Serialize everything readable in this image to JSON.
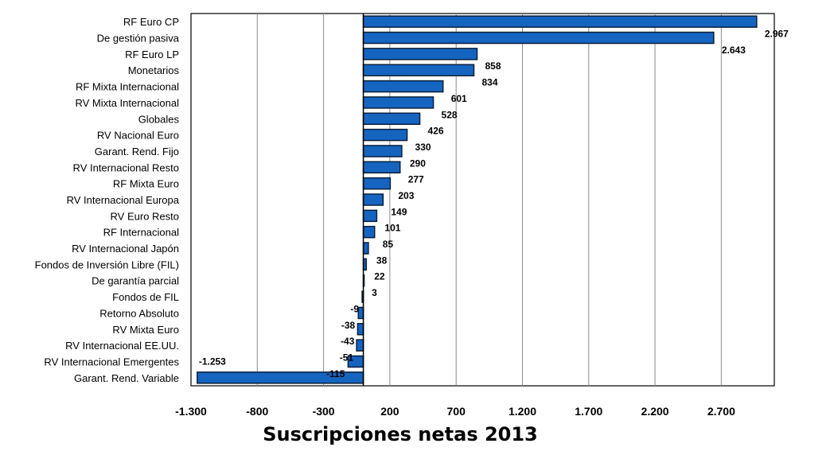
{
  "chart_data": {
    "type": "bar",
    "orientation": "horizontal",
    "categories": [
      "RF Euro CP",
      "De gestión pasiva",
      "RF Euro LP",
      "Monetarios",
      "RF Mixta Internacional",
      "RV Mixta Internacional",
      "Globales",
      "RV Nacional Euro",
      "Garant. Rend. Fijo",
      "RV Internacional Resto",
      "RF Mixta Euro",
      "RV Internacional Europa",
      "RV Euro Resto",
      "RF Internacional",
      "RV Internacional Japón",
      "Fondos de Inversión Libre (FIL)",
      "De garantía parcial",
      "Fondos de FIL",
      "Retorno Absoluto",
      "RV Mixta Euro",
      "RV Internacional EE.UU.",
      "RV Internacional Emergentes",
      "Garant. Rend. Variable"
    ],
    "values": [
      2967,
      2643,
      858,
      834,
      601,
      528,
      426,
      330,
      290,
      277,
      203,
      149,
      101,
      85,
      38,
      22,
      3,
      -9,
      -38,
      -43,
      -51,
      -115,
      -1253
    ],
    "value_labels": [
      "2.967",
      "2.643",
      "858",
      "834",
      "601",
      "528",
      "426",
      "330",
      "290",
      "277",
      "203",
      "149",
      "101",
      "85",
      "38",
      "22",
      "3",
      "-9",
      "-38",
      "-43",
      "-51",
      "-115",
      "-1.253"
    ],
    "xlabel": "Suscripciones netas 2013",
    "xlim": [
      -1300,
      3100
    ],
    "x_ticks": [
      -1300,
      -800,
      -300,
      200,
      700,
      1200,
      1700,
      2200,
      2700
    ],
    "x_tick_labels": [
      "-1.300",
      "-800",
      "-300",
      "200",
      "700",
      "1.200",
      "1.700",
      "2.200",
      "2.700"
    ],
    "grid": true,
    "legend": "none",
    "colors": {
      "bar": "#1565c0",
      "bar_edge": "#0a1f3d",
      "grid": "#8c8c8c"
    }
  }
}
